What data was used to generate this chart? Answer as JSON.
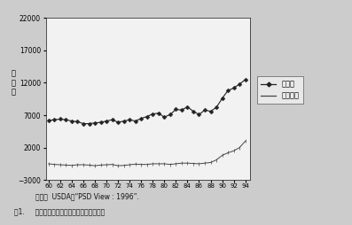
{
  "prod_years": [
    60,
    61,
    62,
    63,
    64,
    65,
    66,
    67,
    68,
    69,
    70,
    71,
    72,
    73,
    74,
    75,
    76,
    77,
    78,
    79,
    80,
    81,
    82,
    83,
    84,
    85,
    86,
    87,
    88,
    89,
    90,
    91,
    92,
    93,
    94
  ],
  "production": [
    6200,
    6300,
    6400,
    6300,
    6100,
    6000,
    5700,
    5700,
    5800,
    5900,
    6100,
    6300,
    5900,
    6100,
    6300,
    6100,
    6500,
    6800,
    7200,
    7300,
    6700,
    7100,
    7900,
    7800,
    8300,
    7600,
    7100,
    7800,
    7600,
    8200,
    9600,
    10800,
    11200,
    11800,
    12500
  ],
  "net_exports": [
    -500,
    -600,
    -650,
    -700,
    -750,
    -650,
    -650,
    -700,
    -800,
    -700,
    -650,
    -600,
    -800,
    -750,
    -650,
    -550,
    -600,
    -600,
    -500,
    -500,
    -500,
    -600,
    -500,
    -400,
    -400,
    -450,
    -500,
    -400,
    -300,
    100,
    800,
    1200,
    1500,
    2000,
    3000
  ],
  "prod_color": "#222222",
  "export_color": "#444444",
  "ylim": [
    -3000,
    22000
  ],
  "yticks": [
    -3000,
    2000,
    7000,
    12000,
    17000,
    22000
  ],
  "xtick_labels": [
    "60",
    "62",
    "64",
    "66",
    "68",
    "70",
    "72",
    "74",
    "76",
    "78",
    "80",
    "82",
    "84",
    "86",
    "88",
    "90",
    "92",
    "94"
  ],
  "xtick_positions": [
    60,
    62,
    64,
    66,
    68,
    70,
    72,
    74,
    76,
    78,
    80,
    82,
    84,
    86,
    88,
    90,
    92,
    94
  ],
  "ylabel": "千\nト\nン",
  "legend_prod": "生産量",
  "legend_export": "純輸出量",
  "source_text": "資料：  USDA，“PSD View : 1996”.",
  "caption": "囱1.     ベトナムの米生産量と純輸出量の推移",
  "fig_bg": "#d8d8d8",
  "plot_bg": "#f5f5f5"
}
